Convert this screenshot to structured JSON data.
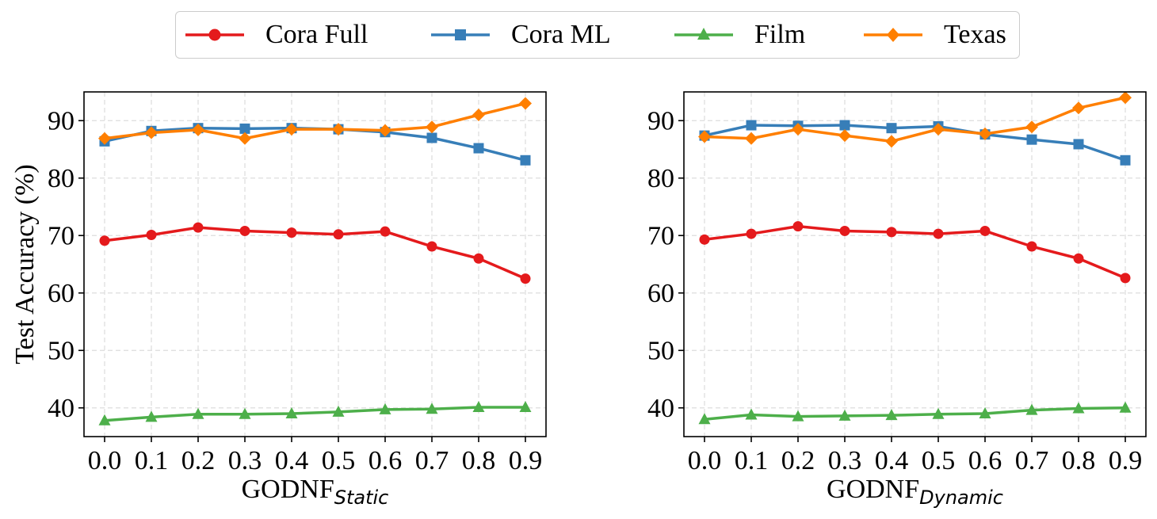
{
  "legend": [
    {
      "name": "Cora Full",
      "color": "#e41a1c",
      "marker": "circle"
    },
    {
      "name": "Cora ML",
      "color": "#377eb8",
      "marker": "square"
    },
    {
      "name": "Film",
      "color": "#4daf4a",
      "marker": "triangle"
    },
    {
      "name": "Texas",
      "color": "#ff7f00",
      "marker": "diamond"
    }
  ],
  "ylabel": "Test Accuracy (%)",
  "chart_data": [
    {
      "type": "line",
      "xlabel_main": "GODNF",
      "xlabel_sub": "Static",
      "ylabel": "Test Accuracy (%)",
      "x": [
        0.0,
        0.1,
        0.2,
        0.3,
        0.4,
        0.5,
        0.6,
        0.7,
        0.8,
        0.9
      ],
      "x_tick_labels": [
        "0.0",
        "0.1",
        "0.2",
        "0.3",
        "0.4",
        "0.5",
        "0.6",
        "0.7",
        "0.8",
        "0.9"
      ],
      "ylim": [
        35,
        95
      ],
      "y_ticks": [
        40,
        50,
        60,
        70,
        80,
        90
      ],
      "grid": true,
      "series": [
        {
          "name": "Cora Full",
          "values": [
            69.1,
            70.1,
            71.4,
            70.8,
            70.5,
            70.2,
            70.7,
            68.1,
            66.0,
            62.5
          ]
        },
        {
          "name": "Cora ML",
          "values": [
            86.4,
            88.2,
            88.7,
            88.6,
            88.7,
            88.5,
            88.0,
            87.0,
            85.2,
            83.1
          ]
        },
        {
          "name": "Film",
          "values": [
            37.8,
            38.4,
            38.9,
            38.9,
            39.0,
            39.3,
            39.7,
            39.8,
            40.1,
            40.1
          ]
        },
        {
          "name": "Texas",
          "values": [
            86.9,
            87.9,
            88.4,
            86.9,
            88.5,
            88.5,
            88.3,
            88.9,
            91.0,
            93.0
          ]
        }
      ]
    },
    {
      "type": "line",
      "xlabel_main": "GODNF",
      "xlabel_sub": "Dynamic",
      "x": [
        0.0,
        0.1,
        0.2,
        0.3,
        0.4,
        0.5,
        0.6,
        0.7,
        0.8,
        0.9
      ],
      "x_tick_labels": [
        "0.0",
        "0.1",
        "0.2",
        "0.3",
        "0.4",
        "0.5",
        "0.6",
        "0.7",
        "0.8",
        "0.9"
      ],
      "ylim": [
        35,
        95
      ],
      "y_ticks": [
        40,
        50,
        60,
        70,
        80,
        90
      ],
      "grid": true,
      "series": [
        {
          "name": "Cora Full",
          "values": [
            69.3,
            70.3,
            71.6,
            70.8,
            70.6,
            70.3,
            70.8,
            68.1,
            66.0,
            62.6
          ]
        },
        {
          "name": "Cora ML",
          "values": [
            87.4,
            89.2,
            89.1,
            89.2,
            88.7,
            89.0,
            87.6,
            86.7,
            85.9,
            83.1
          ]
        },
        {
          "name": "Film",
          "values": [
            38.0,
            38.8,
            38.5,
            38.6,
            38.7,
            38.9,
            39.0,
            39.6,
            39.9,
            40.0
          ]
        },
        {
          "name": "Texas",
          "values": [
            87.2,
            86.9,
            88.5,
            87.4,
            86.4,
            88.5,
            87.7,
            88.9,
            92.2,
            94.0
          ]
        }
      ]
    }
  ]
}
